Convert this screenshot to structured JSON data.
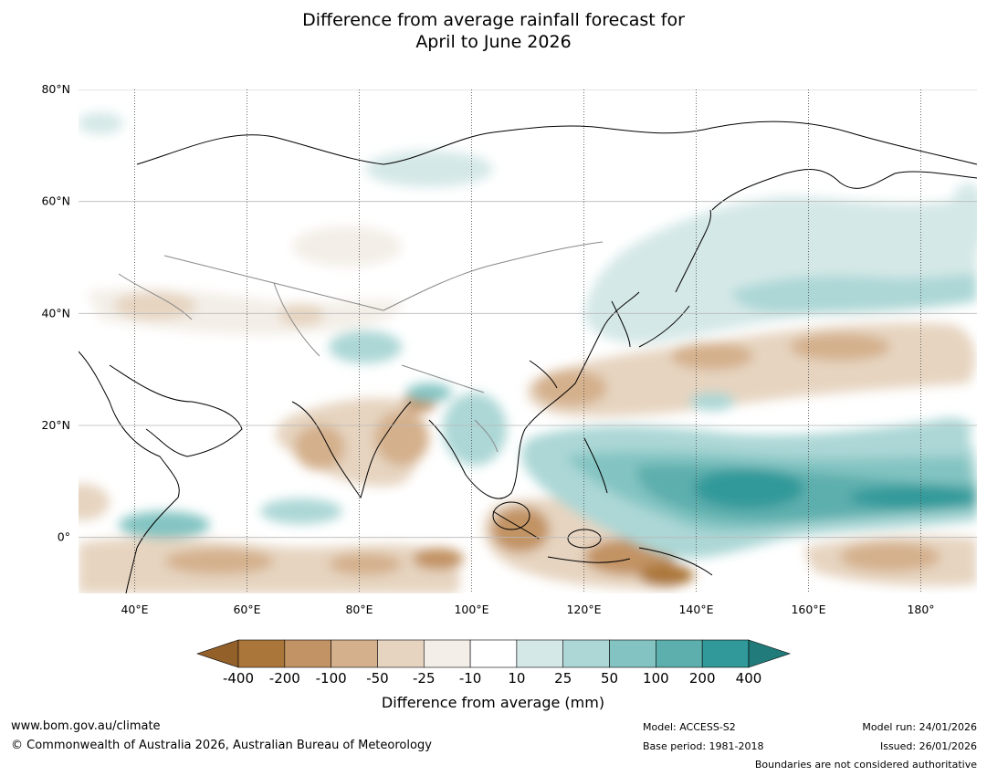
{
  "title": {
    "line1": "Difference from average rainfall forecast for",
    "line2": "April to June 2026"
  },
  "map": {
    "lat_labels": [
      "80°N",
      "60°N",
      "40°N",
      "20°N",
      "0°"
    ],
    "lon_labels": [
      "40°E",
      "60°E",
      "80°E",
      "100°E",
      "120°E",
      "140°E",
      "160°E",
      "180°"
    ],
    "lon_range": [
      30,
      190
    ],
    "lat_range": [
      -10,
      80
    ]
  },
  "legend": {
    "title": "Difference from average (mm)",
    "ticks": [
      "-400",
      "-200",
      "-100",
      "-50",
      "-25",
      "-10",
      "10",
      "25",
      "50",
      "100",
      "200",
      "400"
    ],
    "colors": [
      "#ab7639",
      "#c29364",
      "#d4b08c",
      "#e6d4c0",
      "#f3eee7",
      "#ffffff",
      "#d4e8e7",
      "#acd7d6",
      "#83c4c2",
      "#5dafad",
      "#31999a"
    ],
    "under_color": "#93602a",
    "over_color": "#207b7a"
  },
  "footer": {
    "website": "www.bom.gov.au/climate",
    "copyright": "© Commonwealth of Australia 2026, Australian Bureau of Meteorology",
    "model": "Model: ACCESS-S2",
    "base_period": "Base period: 1981-2018",
    "model_run": "Model run: 24/01/2026",
    "issued": "Issued: 26/01/2026",
    "disclaimer": "Boundaries are not considered authoritative"
  }
}
